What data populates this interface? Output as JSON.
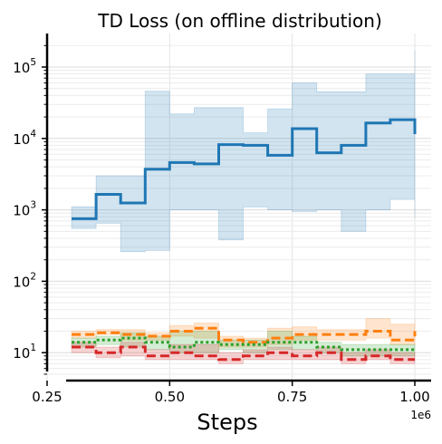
{
  "chart_data": {
    "type": "line",
    "title": "TD Loss (on offline distribution)",
    "xlabel": "Steps",
    "ylabel": "",
    "x_offset_label": "1e6",
    "x_scale": "linear",
    "y_scale": "log",
    "xlim": [
      0.25,
      1.0
    ],
    "ylim": [
      5,
      250000
    ],
    "x_ticks": [
      0.25,
      0.5,
      0.75,
      1.0
    ],
    "x_tick_labels": [
      "0.25",
      "0.50",
      "0.75",
      "1.00"
    ],
    "y_ticks": [
      {
        "base": "10",
        "exp": "1",
        "value": 10
      },
      {
        "base": "10",
        "exp": "2",
        "value": 100
      },
      {
        "base": "10",
        "exp": "3",
        "value": 1000
      },
      {
        "base": "10",
        "exp": "4",
        "value": 10000
      },
      {
        "base": "10",
        "exp": "5",
        "value": 100000
      }
    ],
    "grid": true,
    "legend": "none",
    "series": [
      {
        "color": "#1f77b4",
        "style": "solid",
        "x": [
          0.3,
          0.35,
          0.4,
          0.45,
          0.5,
          0.55,
          0.6,
          0.65,
          0.7,
          0.75,
          0.8,
          0.85,
          0.9,
          0.95,
          1.0
        ],
        "values": [
          750,
          1650,
          1250,
          3700,
          4600,
          4400,
          8200,
          8000,
          5800,
          13700,
          6300,
          8000,
          16500,
          18300,
          11500
        ],
        "band_low": [
          550,
          650,
          260,
          270,
          1000,
          1000,
          380,
          1100,
          1000,
          950,
          1000,
          500,
          1000,
          1400,
          750
        ],
        "band_high": [
          1100,
          3000,
          3000,
          46000,
          22000,
          27000,
          27000,
          12000,
          26000,
          60000,
          45000,
          45000,
          80000,
          80000,
          170000
        ]
      },
      {
        "color": "#ff7f0e",
        "style": "dashed",
        "x": [
          0.3,
          0.35,
          0.4,
          0.45,
          0.5,
          0.55,
          0.6,
          0.65,
          0.7,
          0.75,
          0.8,
          0.85,
          0.9,
          0.95,
          1.0
        ],
        "values": [
          18,
          19,
          18,
          17,
          20,
          22,
          15,
          14,
          16,
          18,
          18,
          18,
          20,
          15,
          20
        ],
        "band_low": [
          16,
          18,
          15,
          15,
          17,
          16,
          12,
          12,
          13,
          15,
          15,
          15,
          16,
          13,
          15
        ],
        "band_high": [
          20,
          21,
          21,
          19,
          24,
          26,
          17,
          16,
          22,
          23,
          21,
          21,
          30,
          25,
          30
        ]
      },
      {
        "color": "#2ca02c",
        "style": "dotted",
        "x": [
          0.3,
          0.35,
          0.4,
          0.45,
          0.5,
          0.55,
          0.6,
          0.65,
          0.7,
          0.75,
          0.8,
          0.85,
          0.9,
          0.95,
          1.0
        ],
        "values": [
          14,
          15,
          16,
          14,
          12,
          14,
          13,
          13,
          14,
          14,
          12,
          11,
          11,
          11,
          11
        ],
        "band_low": [
          12,
          13,
          12,
          11,
          10,
          10,
          11,
          10,
          11,
          11,
          10,
          9,
          9,
          9,
          9
        ],
        "band_high": [
          16,
          17,
          19,
          17,
          20,
          20,
          15,
          15,
          20,
          17,
          14,
          13,
          13,
          13,
          13
        ]
      },
      {
        "color": "#d62728",
        "style": "dashed",
        "x": [
          0.3,
          0.35,
          0.4,
          0.45,
          0.5,
          0.55,
          0.6,
          0.65,
          0.7,
          0.75,
          0.8,
          0.85,
          0.9,
          0.95,
          1.0
        ],
        "values": [
          12,
          10,
          12,
          9,
          10,
          9,
          8,
          9,
          10,
          9,
          10,
          8,
          9,
          8,
          8
        ],
        "band_low": [
          10,
          8.5,
          9,
          8,
          8,
          8,
          7,
          8,
          8,
          8,
          8,
          7,
          8,
          7,
          7
        ],
        "band_high": [
          14,
          12,
          14,
          11,
          13,
          13,
          10,
          11,
          12,
          11,
          12,
          10,
          11,
          10,
          10
        ]
      }
    ]
  }
}
